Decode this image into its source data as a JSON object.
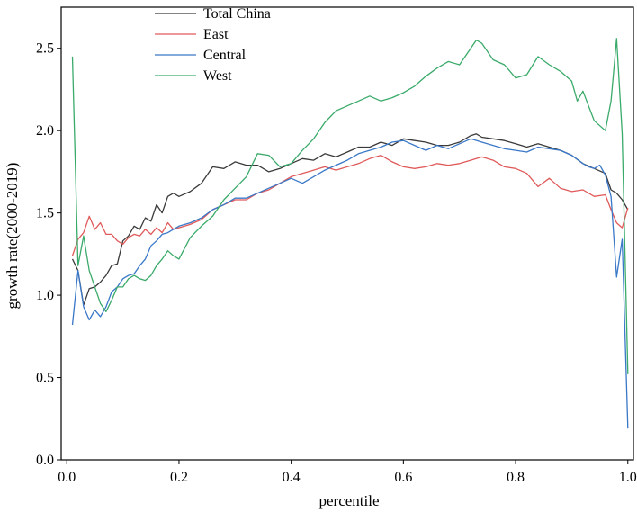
{
  "chart_data": {
    "type": "line",
    "title": "",
    "xlabel": "percentile",
    "ylabel": "growth rate(2000-2019)",
    "xlim": [
      -0.01,
      1.01
    ],
    "ylim": [
      0.0,
      2.75
    ],
    "xticks": [
      {
        "value": 0.0,
        "label": "0.0"
      },
      {
        "value": 0.2,
        "label": "0.2"
      },
      {
        "value": 0.4,
        "label": "0.4"
      },
      {
        "value": 0.6,
        "label": "0.6"
      },
      {
        "value": 0.8,
        "label": "0.8"
      },
      {
        "value": 1.0,
        "label": "1.0"
      }
    ],
    "yticks": [
      {
        "value": 0.0,
        "label": "0.0"
      },
      {
        "value": 0.5,
        "label": "0.5"
      },
      {
        "value": 1.0,
        "label": "1.0"
      },
      {
        "value": 1.5,
        "label": "1.5"
      },
      {
        "value": 2.0,
        "label": "2.0"
      },
      {
        "value": 2.5,
        "label": "2.5"
      }
    ],
    "grid": false,
    "legend_position": "top-left",
    "series": [
      {
        "name": "Total China",
        "color": "#3a3a3a",
        "x": [
          0.01,
          0.02,
          0.03,
          0.04,
          0.05,
          0.06,
          0.07,
          0.08,
          0.09,
          0.1,
          0.11,
          0.12,
          0.13,
          0.14,
          0.15,
          0.16,
          0.17,
          0.18,
          0.19,
          0.2,
          0.22,
          0.24,
          0.26,
          0.28,
          0.3,
          0.32,
          0.34,
          0.36,
          0.38,
          0.4,
          0.42,
          0.44,
          0.46,
          0.48,
          0.5,
          0.52,
          0.54,
          0.56,
          0.58,
          0.6,
          0.62,
          0.64,
          0.66,
          0.68,
          0.7,
          0.72,
          0.73,
          0.74,
          0.76,
          0.78,
          0.8,
          0.82,
          0.84,
          0.86,
          0.88,
          0.9,
          0.92,
          0.94,
          0.96,
          0.97,
          0.98,
          0.99,
          1.0
        ],
        "y": [
          1.22,
          1.15,
          0.94,
          1.04,
          1.05,
          1.08,
          1.12,
          1.18,
          1.19,
          1.33,
          1.36,
          1.42,
          1.4,
          1.47,
          1.45,
          1.55,
          1.5,
          1.6,
          1.62,
          1.6,
          1.63,
          1.68,
          1.78,
          1.77,
          1.81,
          1.79,
          1.79,
          1.75,
          1.77,
          1.8,
          1.83,
          1.82,
          1.86,
          1.84,
          1.87,
          1.9,
          1.9,
          1.93,
          1.91,
          1.95,
          1.94,
          1.93,
          1.91,
          1.91,
          1.93,
          1.97,
          1.98,
          1.96,
          1.95,
          1.94,
          1.92,
          1.9,
          1.92,
          1.9,
          1.88,
          1.85,
          1.8,
          1.77,
          1.74,
          1.64,
          1.62,
          1.58,
          1.52
        ]
      },
      {
        "name": "East",
        "color": "#e05a5a",
        "x": [
          0.01,
          0.02,
          0.03,
          0.04,
          0.05,
          0.06,
          0.07,
          0.08,
          0.09,
          0.1,
          0.11,
          0.12,
          0.13,
          0.14,
          0.15,
          0.16,
          0.17,
          0.18,
          0.19,
          0.2,
          0.22,
          0.24,
          0.26,
          0.28,
          0.3,
          0.32,
          0.34,
          0.36,
          0.38,
          0.4,
          0.42,
          0.44,
          0.46,
          0.48,
          0.5,
          0.52,
          0.54,
          0.56,
          0.58,
          0.6,
          0.62,
          0.64,
          0.66,
          0.68,
          0.7,
          0.72,
          0.74,
          0.76,
          0.78,
          0.8,
          0.82,
          0.84,
          0.86,
          0.88,
          0.9,
          0.92,
          0.94,
          0.96,
          0.97,
          0.98,
          0.99,
          1.0
        ],
        "y": [
          1.24,
          1.34,
          1.38,
          1.48,
          1.4,
          1.44,
          1.37,
          1.37,
          1.33,
          1.31,
          1.35,
          1.37,
          1.36,
          1.4,
          1.37,
          1.41,
          1.38,
          1.44,
          1.4,
          1.41,
          1.43,
          1.46,
          1.52,
          1.55,
          1.58,
          1.58,
          1.62,
          1.64,
          1.68,
          1.72,
          1.74,
          1.76,
          1.78,
          1.76,
          1.78,
          1.8,
          1.83,
          1.85,
          1.81,
          1.78,
          1.77,
          1.78,
          1.8,
          1.79,
          1.8,
          1.82,
          1.84,
          1.82,
          1.78,
          1.77,
          1.74,
          1.66,
          1.71,
          1.65,
          1.63,
          1.64,
          1.6,
          1.61,
          1.52,
          1.44,
          1.41,
          1.53
        ]
      },
      {
        "name": "Central",
        "color": "#3a78c8",
        "x": [
          0.01,
          0.02,
          0.03,
          0.04,
          0.05,
          0.06,
          0.07,
          0.08,
          0.09,
          0.1,
          0.11,
          0.12,
          0.13,
          0.14,
          0.15,
          0.16,
          0.17,
          0.18,
          0.19,
          0.2,
          0.22,
          0.24,
          0.26,
          0.28,
          0.3,
          0.32,
          0.34,
          0.36,
          0.38,
          0.4,
          0.42,
          0.44,
          0.46,
          0.48,
          0.5,
          0.52,
          0.54,
          0.56,
          0.58,
          0.6,
          0.62,
          0.64,
          0.66,
          0.68,
          0.7,
          0.72,
          0.74,
          0.76,
          0.78,
          0.8,
          0.82,
          0.84,
          0.86,
          0.88,
          0.9,
          0.92,
          0.93,
          0.94,
          0.95,
          0.96,
          0.97,
          0.98,
          0.99,
          1.0
        ],
        "y": [
          0.82,
          1.15,
          0.93,
          0.85,
          0.91,
          0.87,
          0.93,
          1.02,
          1.05,
          1.1,
          1.12,
          1.13,
          1.18,
          1.22,
          1.3,
          1.33,
          1.37,
          1.38,
          1.4,
          1.42,
          1.44,
          1.47,
          1.52,
          1.55,
          1.59,
          1.59,
          1.62,
          1.65,
          1.68,
          1.71,
          1.68,
          1.72,
          1.76,
          1.79,
          1.82,
          1.86,
          1.88,
          1.9,
          1.93,
          1.94,
          1.91,
          1.88,
          1.91,
          1.89,
          1.92,
          1.95,
          1.93,
          1.91,
          1.89,
          1.88,
          1.87,
          1.9,
          1.89,
          1.88,
          1.85,
          1.8,
          1.78,
          1.77,
          1.79,
          1.73,
          1.6,
          1.11,
          1.34,
          0.19
        ]
      },
      {
        "name": "West",
        "color": "#3aaa6a",
        "x": [
          0.01,
          0.02,
          0.03,
          0.04,
          0.05,
          0.06,
          0.07,
          0.08,
          0.09,
          0.1,
          0.11,
          0.12,
          0.13,
          0.14,
          0.15,
          0.16,
          0.17,
          0.18,
          0.19,
          0.2,
          0.22,
          0.24,
          0.26,
          0.28,
          0.3,
          0.32,
          0.34,
          0.36,
          0.38,
          0.4,
          0.42,
          0.44,
          0.46,
          0.48,
          0.5,
          0.52,
          0.54,
          0.56,
          0.58,
          0.6,
          0.62,
          0.64,
          0.66,
          0.68,
          0.7,
          0.72,
          0.73,
          0.74,
          0.76,
          0.78,
          0.8,
          0.82,
          0.84,
          0.86,
          0.88,
          0.9,
          0.91,
          0.92,
          0.94,
          0.96,
          0.97,
          0.98,
          0.99,
          1.0
        ],
        "y": [
          2.45,
          1.18,
          1.36,
          1.15,
          1.05,
          0.95,
          0.9,
          0.97,
          1.05,
          1.05,
          1.1,
          1.12,
          1.1,
          1.09,
          1.12,
          1.18,
          1.22,
          1.27,
          1.24,
          1.22,
          1.35,
          1.42,
          1.48,
          1.58,
          1.65,
          1.72,
          1.86,
          1.85,
          1.78,
          1.8,
          1.88,
          1.95,
          2.05,
          2.12,
          2.15,
          2.18,
          2.21,
          2.18,
          2.2,
          2.23,
          2.27,
          2.33,
          2.38,
          2.42,
          2.4,
          2.5,
          2.55,
          2.53,
          2.43,
          2.4,
          2.32,
          2.34,
          2.45,
          2.4,
          2.36,
          2.3,
          2.18,
          2.24,
          2.06,
          2.0,
          2.18,
          2.56,
          1.98,
          0.52
        ]
      }
    ]
  }
}
